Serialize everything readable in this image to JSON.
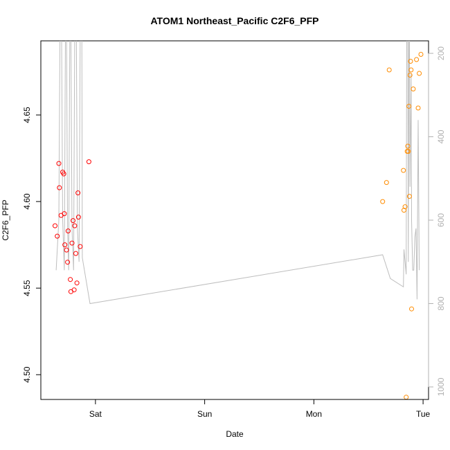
{
  "chart_data": {
    "type": "scatter",
    "title": "ATOM1 Northeast_Pacific C2F6_PFP",
    "xlabel": "Date",
    "ylabel": "C2F6_PFP",
    "x_ticks": [
      {
        "label": "Sat",
        "day": 1.0
      },
      {
        "label": "Sun",
        "day": 2.0
      },
      {
        "label": "Mon",
        "day": 3.0
      },
      {
        "label": "Tue",
        "day": 4.0
      }
    ],
    "xlim_days": [
      0.5,
      4.05
    ],
    "ylim": [
      4.4857,
      4.6928
    ],
    "y_ticks": [
      4.5,
      4.55,
      4.6,
      4.65
    ],
    "y2_ticks": [
      200,
      400,
      600,
      800,
      1000
    ],
    "y2lim": [
      1030,
      170
    ],
    "series": [
      {
        "color": "#ff0000",
        "points": [
          {
            "day": 0.63,
            "value": 4.586
          },
          {
            "day": 0.65,
            "value": 4.58
          },
          {
            "day": 0.665,
            "value": 4.622
          },
          {
            "day": 0.67,
            "value": 4.608
          },
          {
            "day": 0.685,
            "value": 4.592
          },
          {
            "day": 0.7,
            "value": 4.617
          },
          {
            "day": 0.71,
            "value": 4.616
          },
          {
            "day": 0.715,
            "value": 4.593
          },
          {
            "day": 0.72,
            "value": 4.575
          },
          {
            "day": 0.735,
            "value": 4.572
          },
          {
            "day": 0.745,
            "value": 4.565
          },
          {
            "day": 0.75,
            "value": 4.583
          },
          {
            "day": 0.77,
            "value": 4.555
          },
          {
            "day": 0.775,
            "value": 4.548
          },
          {
            "day": 0.785,
            "value": 4.576
          },
          {
            "day": 0.795,
            "value": 4.589
          },
          {
            "day": 0.805,
            "value": 4.549
          },
          {
            "day": 0.81,
            "value": 4.586
          },
          {
            "day": 0.82,
            "value": 4.57
          },
          {
            "day": 0.83,
            "value": 4.553
          },
          {
            "day": 0.84,
            "value": 4.605
          },
          {
            "day": 0.845,
            "value": 4.591
          },
          {
            "day": 0.86,
            "value": 4.574
          },
          {
            "day": 0.94,
            "value": 4.623
          }
        ]
      },
      {
        "color": "#ff8c00",
        "points": [
          {
            "day": 3.63,
            "value": 4.6
          },
          {
            "day": 3.665,
            "value": 4.611
          },
          {
            "day": 3.69,
            "value": 4.676
          },
          {
            "day": 3.82,
            "value": 4.618
          },
          {
            "day": 3.825,
            "value": 4.595
          },
          {
            "day": 3.835,
            "value": 4.597
          },
          {
            "day": 3.845,
            "value": 4.487
          },
          {
            "day": 3.855,
            "value": 4.629
          },
          {
            "day": 3.86,
            "value": 4.632
          },
          {
            "day": 3.865,
            "value": 4.629
          },
          {
            "day": 3.87,
            "value": 4.655
          },
          {
            "day": 3.875,
            "value": 4.603
          },
          {
            "day": 3.88,
            "value": 4.673
          },
          {
            "day": 3.885,
            "value": 4.681
          },
          {
            "day": 3.89,
            "value": 4.676
          },
          {
            "day": 3.895,
            "value": 4.538
          },
          {
            "day": 3.91,
            "value": 4.665
          },
          {
            "day": 3.94,
            "value": 4.682
          },
          {
            "day": 3.955,
            "value": 4.654
          },
          {
            "day": 3.965,
            "value": 4.674
          },
          {
            "day": 3.98,
            "value": 4.685
          }
        ]
      }
    ],
    "profile": {
      "color": "#bdbdbd",
      "points": [
        {
          "day": 0.64,
          "p": 720
        },
        {
          "day": 0.665,
          "p": 600
        },
        {
          "day": 0.675,
          "p": 160
        },
        {
          "day": 0.69,
          "p": 160
        },
        {
          "day": 0.7,
          "p": 600
        },
        {
          "day": 0.715,
          "p": 720
        },
        {
          "day": 0.725,
          "p": 160
        },
        {
          "day": 0.735,
          "p": 160
        },
        {
          "day": 0.745,
          "p": 620
        },
        {
          "day": 0.755,
          "p": 720
        },
        {
          "day": 0.765,
          "p": 160
        },
        {
          "day": 0.775,
          "p": 160
        },
        {
          "day": 0.785,
          "p": 620
        },
        {
          "day": 0.8,
          "p": 720
        },
        {
          "day": 0.81,
          "p": 160
        },
        {
          "day": 0.825,
          "p": 160
        },
        {
          "day": 0.835,
          "p": 620
        },
        {
          "day": 0.85,
          "p": 700
        },
        {
          "day": 0.86,
          "p": 160
        },
        {
          "day": 0.875,
          "p": 160
        },
        {
          "day": 0.88,
          "p": 690
        },
        {
          "day": 0.95,
          "p": 800
        },
        {
          "day": 3.63,
          "p": 683
        },
        {
          "day": 3.7,
          "p": 740
        },
        {
          "day": 3.82,
          "p": 760
        },
        {
          "day": 3.825,
          "p": 670
        },
        {
          "day": 3.835,
          "p": 700
        },
        {
          "day": 3.845,
          "p": 730
        },
        {
          "day": 3.85,
          "p": 160
        },
        {
          "day": 3.86,
          "p": 160
        },
        {
          "day": 3.865,
          "p": 700
        },
        {
          "day": 3.87,
          "p": 160
        },
        {
          "day": 3.875,
          "p": 160
        },
        {
          "day": 3.88,
          "p": 520
        },
        {
          "day": 3.89,
          "p": 250
        },
        {
          "day": 3.895,
          "p": 600
        },
        {
          "day": 3.905,
          "p": 720
        },
        {
          "day": 3.915,
          "p": 720
        },
        {
          "day": 3.925,
          "p": 640
        },
        {
          "day": 3.935,
          "p": 620
        },
        {
          "day": 3.945,
          "p": 790
        },
        {
          "day": 3.955,
          "p": 360
        },
        {
          "day": 3.965,
          "p": 720
        }
      ]
    },
    "grid": false,
    "legend": "none"
  }
}
